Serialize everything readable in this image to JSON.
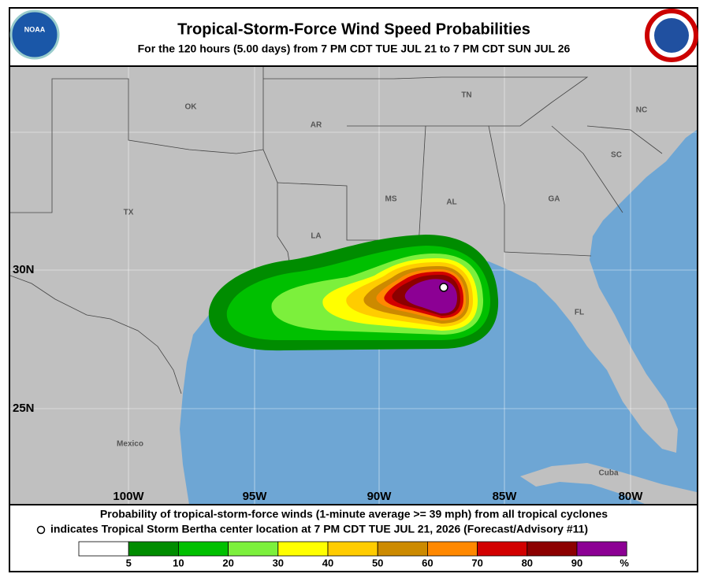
{
  "header": {
    "title": "Tropical-Storm-Force Wind Speed Probabilities",
    "subtitle": "For the 120 hours (5.00 days) from 7 PM CDT TUE JUL 21 to 7 PM CDT SUN JUL 26",
    "logo_left": "NOAA"
  },
  "map": {
    "regions": [
      "OK",
      "AR",
      "TN",
      "NC",
      "SC",
      "MS",
      "AL",
      "GA",
      "TX",
      "LA",
      "FL",
      "Mexico",
      "Cuba"
    ],
    "lat_labels": [
      "30N",
      "25N"
    ],
    "lon_labels": [
      "100W",
      "95W",
      "90W",
      "85W",
      "80W"
    ]
  },
  "footer": {
    "line1": "Probability of tropical-storm-force winds (1-minute average >= 39 mph) from all tropical cyclones",
    "line2": "indicates Tropical Storm Bertha center location at 7 PM CDT TUE JUL 21, 2026 (Forecast/Advisory #11)"
  },
  "legend": {
    "colors": [
      "#ffffff",
      "#008c00",
      "#00c000",
      "#7cf03c",
      "#ffff00",
      "#ffcc00",
      "#cc8a00",
      "#ff8800",
      "#d20000",
      "#8c0000",
      "#8c0094"
    ],
    "ticks": [
      5,
      10,
      20,
      30,
      40,
      50,
      60,
      70,
      80,
      90
    ],
    "unit": "%"
  }
}
